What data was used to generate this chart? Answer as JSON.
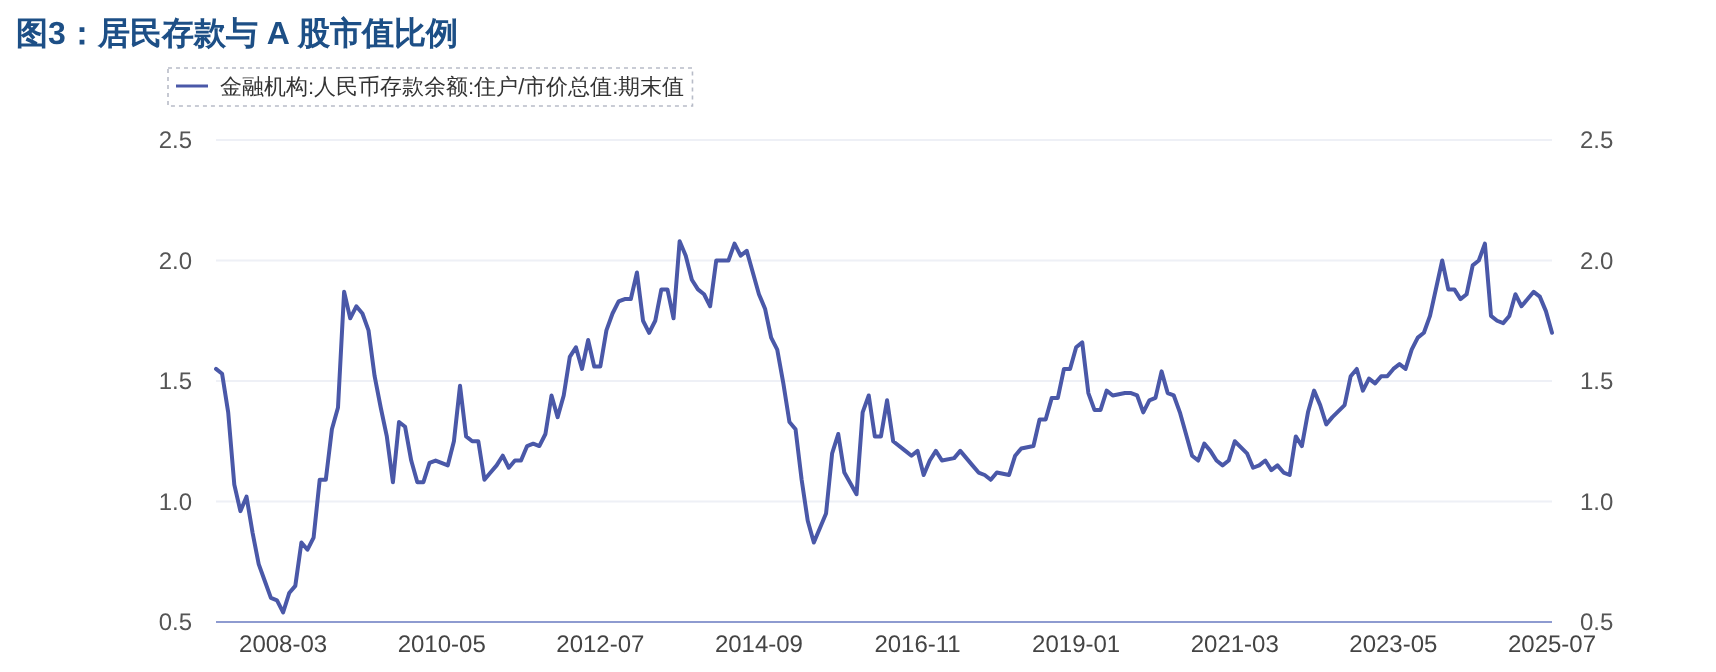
{
  "chart_data": {
    "type": "line",
    "title": "图3：居民存款与 A 股市值比例",
    "x": [
      "2007-04",
      "2007-05",
      "2007-06",
      "2007-07",
      "2007-08",
      "2007-09",
      "2007-10",
      "2007-11",
      "2007-12",
      "2008-01",
      "2008-02",
      "2008-03",
      "2008-04",
      "2008-05",
      "2008-06",
      "2008-07",
      "2008-08",
      "2008-09",
      "2008-10",
      "2008-11",
      "2008-12",
      "2009-01",
      "2009-02",
      "2009-03",
      "2009-04",
      "2009-05",
      "2009-06",
      "2009-07",
      "2009-08",
      "2009-09",
      "2009-10",
      "2009-11",
      "2009-12",
      "2010-01",
      "2010-02",
      "2010-03",
      "2010-04",
      "2010-06",
      "2010-07",
      "2010-08",
      "2010-09",
      "2010-10",
      "2010-11",
      "2010-12",
      "2011-01",
      "2011-02",
      "2011-03",
      "2011-04",
      "2011-05",
      "2011-06",
      "2011-07",
      "2011-08",
      "2011-09",
      "2011-10",
      "2011-11",
      "2011-12",
      "2012-01",
      "2012-02",
      "2012-03",
      "2012-04",
      "2012-05",
      "2012-06",
      "2012-07",
      "2012-08",
      "2012-09",
      "2012-10",
      "2012-11",
      "2012-12",
      "2013-01",
      "2013-02",
      "2013-03",
      "2013-04",
      "2013-05",
      "2013-06",
      "2013-07",
      "2013-08",
      "2013-09",
      "2013-10",
      "2013-11",
      "2013-12",
      "2014-01",
      "2014-02",
      "2014-03",
      "2014-04",
      "2014-05",
      "2014-06",
      "2014-07",
      "2014-09",
      "2014-10",
      "2014-11",
      "2014-12",
      "2015-01",
      "2015-02",
      "2015-03",
      "2015-04",
      "2015-05",
      "2015-06",
      "2015-08",
      "2015-09",
      "2015-10",
      "2015-11",
      "2016-01",
      "2016-02",
      "2016-03",
      "2016-04",
      "2016-05",
      "2016-06",
      "2016-07",
      "2016-09",
      "2016-10",
      "2016-11",
      "2016-12",
      "2017-01",
      "2017-02",
      "2017-03",
      "2017-05",
      "2017-06",
      "2017-08",
      "2017-09",
      "2017-10",
      "2017-11",
      "2017-12",
      "2018-02",
      "2018-03",
      "2018-04",
      "2018-06",
      "2018-07",
      "2018-08",
      "2018-09",
      "2018-10",
      "2018-11",
      "2018-12",
      "2019-01",
      "2019-02",
      "2019-03",
      "2019-04",
      "2019-05",
      "2019-06",
      "2019-07",
      "2019-09",
      "2019-10",
      "2019-11",
      "2019-12",
      "2020-01",
      "2020-02",
      "2020-03",
      "2020-04",
      "2020-05",
      "2020-06",
      "2020-08",
      "2020-09",
      "2020-10",
      "2020-11",
      "2020-12",
      "2021-01",
      "2021-02",
      "2021-03",
      "2021-05",
      "2021-06",
      "2021-07",
      "2021-08",
      "2021-09",
      "2021-10",
      "2021-11",
      "2021-12",
      "2022-01",
      "2022-02",
      "2022-03",
      "2022-04",
      "2022-05",
      "2022-06",
      "2022-07",
      "2022-09",
      "2022-10",
      "2022-11",
      "2022-12",
      "2023-01",
      "2023-02",
      "2023-03",
      "2023-04",
      "2023-05",
      "2023-06",
      "2023-07",
      "2023-08",
      "2023-09",
      "2023-10",
      "2023-11",
      "2024-01",
      "2024-02",
      "2024-03",
      "2024-04",
      "2024-05",
      "2024-06",
      "2024-07",
      "2024-08",
      "2024-09",
      "2024-10",
      "2024-11",
      "2024-12",
      "2025-01",
      "2025-02",
      "2025-03",
      "2025-04",
      "2025-05",
      "2025-06",
      "2025-07"
    ],
    "series": [
      {
        "name": "金融机构:人民币存款余额:住户/市价总值:期末值",
        "color": "#4a58a8",
        "values": [
          1.55,
          1.53,
          1.37,
          1.07,
          0.96,
          1.02,
          0.87,
          0.74,
          0.67,
          0.6,
          0.59,
          0.54,
          0.62,
          0.65,
          0.83,
          0.8,
          0.85,
          1.09,
          1.09,
          1.3,
          1.39,
          1.87,
          1.76,
          1.81,
          1.78,
          1.71,
          1.52,
          1.39,
          1.27,
          1.08,
          1.33,
          1.31,
          1.17,
          1.08,
          1.08,
          1.16,
          1.17,
          1.15,
          1.25,
          1.48,
          1.27,
          1.25,
          1.25,
          1.09,
          1.12,
          1.15,
          1.19,
          1.14,
          1.17,
          1.17,
          1.23,
          1.24,
          1.23,
          1.28,
          1.44,
          1.35,
          1.44,
          1.6,
          1.64,
          1.55,
          1.67,
          1.56,
          1.56,
          1.71,
          1.78,
          1.83,
          1.84,
          1.84,
          1.95,
          1.75,
          1.7,
          1.75,
          1.88,
          1.88,
          1.76,
          2.08,
          2.02,
          1.92,
          1.88,
          1.86,
          1.81,
          2.0,
          2.0,
          2.0,
          2.07,
          2.02,
          2.04,
          1.86,
          1.8,
          1.68,
          1.63,
          1.49,
          1.33,
          1.3,
          1.09,
          0.92,
          0.83,
          0.95,
          1.2,
          1.28,
          1.12,
          1.03,
          1.37,
          1.44,
          1.27,
          1.27,
          1.42,
          1.25,
          1.21,
          1.19,
          1.21,
          1.11,
          1.17,
          1.21,
          1.17,
          1.18,
          1.21,
          1.15,
          1.12,
          1.11,
          1.09,
          1.12,
          1.11,
          1.19,
          1.22,
          1.23,
          1.34,
          1.34,
          1.43,
          1.43,
          1.55,
          1.55,
          1.64,
          1.66,
          1.45,
          1.38,
          1.38,
          1.46,
          1.44,
          1.45,
          1.45,
          1.44,
          1.37,
          1.42,
          1.43,
          1.54,
          1.45,
          1.44,
          1.37,
          1.19,
          1.17,
          1.24,
          1.21,
          1.17,
          1.15,
          1.17,
          1.25,
          1.2,
          1.14,
          1.15,
          1.17,
          1.13,
          1.15,
          1.12,
          1.11,
          1.27,
          1.23,
          1.37,
          1.46,
          1.4,
          1.32,
          1.35,
          1.4,
          1.52,
          1.55,
          1.46,
          1.51,
          1.49,
          1.52,
          1.52,
          1.55,
          1.57,
          1.55,
          1.63,
          1.68,
          1.7,
          1.77,
          2.0,
          1.88,
          1.88,
          1.84,
          1.86,
          1.98,
          2.0,
          2.07,
          1.77,
          1.75,
          1.74,
          1.77,
          1.86,
          1.81,
          1.84,
          1.87,
          1.85,
          1.79,
          1.7
        ]
      }
    ],
    "xlim": [
      "2007-04",
      "2025-07"
    ],
    "xticks": [
      "2008-03",
      "2010-05",
      "2012-07",
      "2014-09",
      "2016-11",
      "2019-01",
      "2021-03",
      "2023-05",
      "2025-07"
    ],
    "ylim": [
      0.5,
      2.5
    ],
    "yticks": [
      0.5,
      {
        "value": 1,
        "label": "1.0"
      },
      1.5,
      {
        "value": 2,
        "label": "2.0"
      },
      2.5
    ],
    "y2lim": [
      0.5,
      2.5
    ],
    "y2ticks": [
      0.5,
      {
        "value": 1,
        "label": "1.0"
      },
      1.5,
      {
        "value": 2,
        "label": "2.0"
      },
      2.5
    ],
    "grid": "y",
    "legend": "top left",
    "line_style": "solid",
    "marker": "none"
  }
}
